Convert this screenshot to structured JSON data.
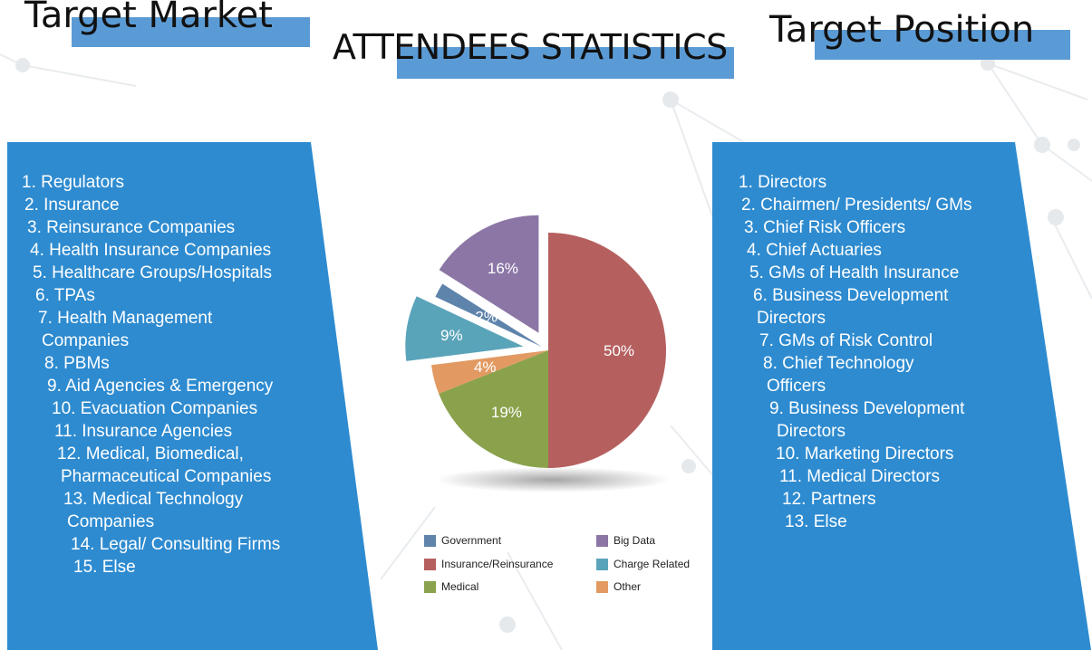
{
  "target_market": {
    "title": "Target Market",
    "items": [
      "1. Regulators",
      "2. Insurance",
      "3. Reinsurance Companies",
      "4. Health Insurance Companies",
      "5. Healthcare Groups/Hospitals",
      "6. TPAs",
      "7. Health Management",
      "Companies",
      "8. PBMs",
      "9. Aid Agencies & Emergency",
      "10. Evacuation Companies",
      "11. Insurance Agencies",
      "12. Medical, Biomedical,",
      "Pharmaceutical Companies",
      "13. Medical Technology",
      "Companies",
      "14. Legal/ Consulting Firms",
      "15. Else"
    ]
  },
  "target_position": {
    "title": "Target Position",
    "items": [
      "1. Directors",
      "2. Chairmen/ Presidents/ GMs",
      "3. Chief Risk Officers",
      "4. Chief Actuaries",
      "5. GMs of Health Insurance",
      "6. Business Development",
      "Directors",
      "7. GMs of Risk Control",
      "8. Chief Technology",
      "Officers",
      "9. Business Development",
      "Directors",
      "10. Marketing Directors",
      "11. Medical Directors",
      "12. Partners",
      "13. Else"
    ]
  },
  "colors": {
    "panel": "#2e8bd0",
    "heading_bar": "#5b9bd5"
  },
  "chart_data": {
    "type": "pie",
    "title": "ATTENDEES STATISTICS",
    "slices": [
      {
        "name": "Insurance/Reinsurance",
        "value": 50,
        "label": "50%",
        "color": "#b5605f"
      },
      {
        "name": "Medical",
        "value": 19,
        "label": "19%",
        "color": "#8aa24c"
      },
      {
        "name": "Other",
        "value": 4,
        "label": "4%",
        "color": "#e29a62"
      },
      {
        "name": "Charge Related",
        "value": 9,
        "label": "9%",
        "color": "#5aa4ba"
      },
      {
        "name": "Government",
        "value": 2,
        "label": "2%",
        "color": "#5e84ab"
      },
      {
        "name": "Big Data",
        "value": 16,
        "label": "16%",
        "color": "#8b76a6"
      }
    ],
    "legend": [
      {
        "name": "Government",
        "color": "#5e84ab"
      },
      {
        "name": "Big Data",
        "color": "#8b76a6"
      },
      {
        "name": "Insurance/Reinsurance",
        "color": "#b5605f"
      },
      {
        "name": "Charge Related",
        "color": "#5aa4ba"
      },
      {
        "name": "Medical",
        "color": "#8aa24c"
      },
      {
        "name": "Other",
        "color": "#e29a62"
      }
    ],
    "legend_placement": "bottom"
  }
}
